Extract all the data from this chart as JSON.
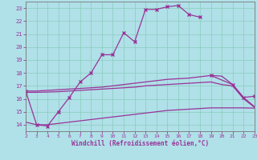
{
  "background_color": "#b0e0e8",
  "grid_color": "#88ccbb",
  "line_color": "#993399",
  "xlabel": "Windchill (Refroidissement éolien,°C)",
  "xlim": [
    2,
    23
  ],
  "ylim": [
    13.5,
    23.5
  ],
  "xticks": [
    2,
    3,
    4,
    5,
    6,
    7,
    8,
    9,
    10,
    11,
    12,
    13,
    14,
    15,
    16,
    17,
    18,
    19,
    20,
    21,
    22,
    23
  ],
  "yticks": [
    14,
    15,
    16,
    17,
    18,
    19,
    20,
    21,
    22,
    23
  ],
  "series1_x": [
    2,
    3,
    4,
    5,
    6,
    7,
    8,
    9,
    10,
    11,
    12,
    13,
    14,
    15,
    16,
    17,
    18,
    19,
    21,
    22,
    23
  ],
  "series1_y": [
    16.6,
    14.0,
    13.9,
    15.0,
    16.1,
    17.3,
    18.0,
    19.4,
    19.4,
    21.1,
    20.4,
    22.9,
    22.9,
    23.1,
    23.2,
    22.5,
    22.3,
    17.8,
    17.1,
    16.1,
    16.2
  ],
  "series1_break_after": 18,
  "series2_x": [
    2,
    3,
    4,
    5,
    6,
    7,
    8,
    9,
    10,
    11,
    12,
    13,
    14,
    15,
    16,
    17,
    18,
    19,
    20,
    21,
    22,
    23
  ],
  "series2_y": [
    16.6,
    16.6,
    16.65,
    16.7,
    16.75,
    16.8,
    16.85,
    16.9,
    17.0,
    17.1,
    17.2,
    17.3,
    17.4,
    17.5,
    17.55,
    17.6,
    17.7,
    17.8,
    17.75,
    17.1,
    16.1,
    15.4
  ],
  "series3_x": [
    2,
    3,
    4,
    5,
    6,
    7,
    8,
    9,
    10,
    11,
    12,
    13,
    14,
    15,
    16,
    17,
    18,
    19,
    20,
    21,
    22,
    23
  ],
  "series3_y": [
    16.5,
    16.5,
    16.52,
    16.55,
    16.6,
    16.65,
    16.7,
    16.75,
    16.8,
    16.85,
    16.9,
    17.0,
    17.05,
    17.1,
    17.15,
    17.2,
    17.25,
    17.3,
    17.1,
    17.0,
    16.0,
    15.35
  ],
  "series4_x": [
    2,
    3,
    4,
    5,
    6,
    7,
    8,
    9,
    10,
    11,
    12,
    13,
    14,
    15,
    16,
    17,
    18,
    19,
    20,
    21,
    22,
    23
  ],
  "series4_y": [
    14.2,
    14.0,
    14.0,
    14.1,
    14.2,
    14.3,
    14.4,
    14.5,
    14.6,
    14.7,
    14.8,
    14.9,
    15.0,
    15.1,
    15.15,
    15.2,
    15.25,
    15.3,
    15.3,
    15.3,
    15.3,
    15.28
  ]
}
